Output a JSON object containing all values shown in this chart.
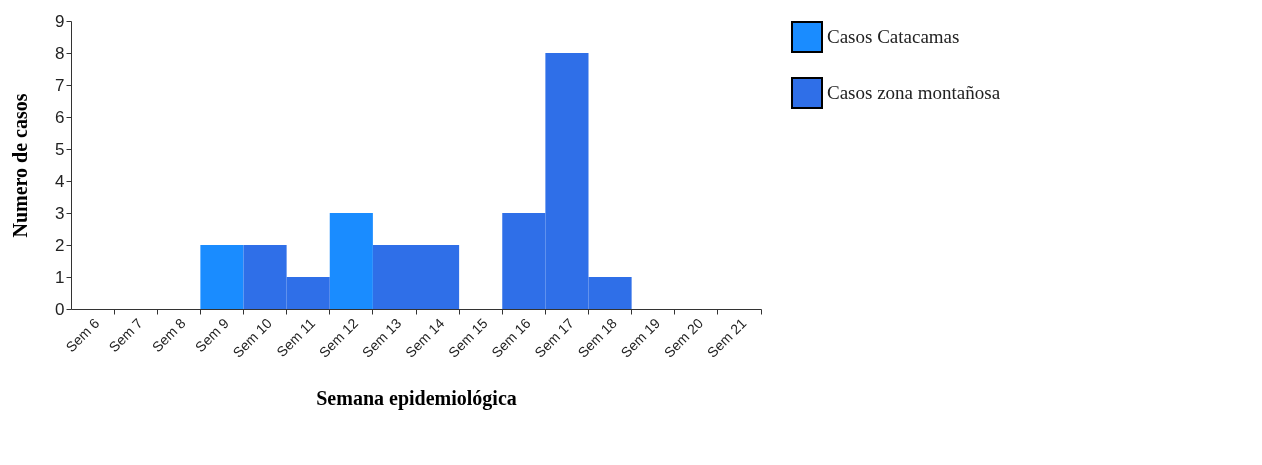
{
  "chart_data": {
    "type": "bar",
    "xlabel": "Semana epidemiológica",
    "ylabel": "Numero de casos",
    "categories": [
      "Sem 6",
      "Sem 7",
      "Sem 8",
      "Sem 9",
      "Sem 10",
      "Sem 11",
      "Sem 12",
      "Sem 13",
      "Sem 14",
      "Sem 15",
      "Sem 16",
      "Sem 17",
      "Sem 18",
      "Sem 19",
      "Sem 20",
      "Sem 21"
    ],
    "series": [
      {
        "name": "Casos Catacamas",
        "color": "#1a8cff",
        "values": [
          null,
          null,
          null,
          2,
          null,
          null,
          3,
          null,
          null,
          null,
          null,
          null,
          null,
          null,
          null,
          null
        ]
      },
      {
        "name": "Casos zona montañosa",
        "color": "#2f6fe8",
        "values": [
          0,
          0,
          0,
          null,
          2,
          1,
          null,
          2,
          2,
          0,
          3,
          8,
          1,
          0,
          0,
          0
        ]
      }
    ],
    "ylim": [
      0,
      9
    ],
    "yticks": [
      0,
      1,
      2,
      3,
      4,
      5,
      6,
      7,
      8,
      9
    ],
    "grid": false,
    "legend": "right"
  }
}
